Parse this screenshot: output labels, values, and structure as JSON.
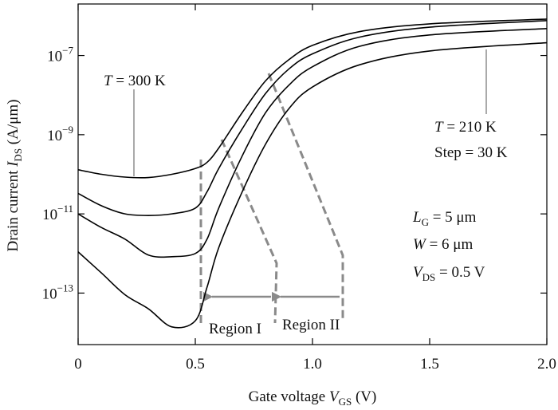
{
  "chart_data": {
    "type": "line",
    "y_label": {
      "text": "Drain current ",
      "var": "I",
      "sub": "DS",
      "unit": " (A/μm)"
    },
    "x_label": {
      "text": "Gate voltage ",
      "var": "V",
      "sub": "GS",
      "unit": " (V)"
    },
    "yscale": "log",
    "x": [
      0,
      0.1,
      0.2,
      0.3,
      0.4,
      0.5,
      0.55,
      0.6,
      0.7,
      0.8,
      0.9,
      1.0,
      1.2,
      1.5,
      2.0
    ],
    "series": [
      {
        "color": "#000000",
        "values": [
          1.3e-10,
          1e-10,
          8.5e-11,
          8.3e-11,
          1e-10,
          1.4e-10,
          2e-10,
          4.6e-10,
          3.6e-09,
          2.3e-08,
          7.9e-08,
          1.8e-07,
          4e-07,
          6.3e-07,
          8.3e-07
        ]
      },
      {
        "color": "#000000",
        "values": [
          3.3e-11,
          1.6e-11,
          1e-11,
          9.1e-12,
          1e-11,
          1.4e-11,
          3.6e-11,
          1.4e-10,
          1.4e-09,
          1.1e-08,
          4.6e-08,
          1.1e-07,
          2.9e-07,
          5.2e-07,
          7.6e-07
        ]
      },
      {
        "color": "#000000",
        "values": [
          1e-11,
          4.5e-12,
          2.3e-12,
          9.1e-13,
          8.3e-13,
          1e-12,
          2.3e-12,
          1.4e-11,
          2.9e-10,
          3.6e-09,
          1.8e-08,
          5.2e-08,
          1.7e-07,
          3.3e-07,
          4.8e-07
        ]
      },
      {
        "color": "#000000",
        "values": [
          1.1e-12,
          3.2e-13,
          9.1e-14,
          4e-14,
          1.4e-14,
          2e-14,
          1.4e-13,
          1.4e-12,
          3.6e-11,
          5.8e-10,
          4.6e-09,
          1.6e-08,
          5.8e-08,
          1.3e-07,
          2.1e-07
        ]
      }
    ],
    "xlim": [
      0,
      2.0
    ],
    "xticks": [
      0,
      0.5,
      {
        "value": 1.0,
        "label": "1.0"
      },
      1.5,
      {
        "value": 2.0,
        "label": "2.0"
      }
    ],
    "ylim": [
      5e-15,
      2e-06
    ],
    "yticks": [
      {
        "value": 1e-13,
        "label": "10",
        "exponent": "−13"
      },
      {
        "value": 1e-11,
        "label": "10",
        "exponent": "−11"
      },
      {
        "value": 1e-09,
        "label": "10",
        "exponent": "−9"
      },
      {
        "value": 1e-07,
        "label": "10",
        "exponent": "−7"
      }
    ],
    "annotations": {
      "t_high": {
        "var": "T",
        "text": " = 300 K"
      },
      "t_low": {
        "var": "T",
        "text": " = 210 K"
      },
      "step": "Step = 30 K",
      "lg": {
        "var": "L",
        "sub": "G",
        "text": " = 5 μm"
      },
      "w": {
        "var": "W",
        "text": " = 6 μm"
      },
      "vds": {
        "var": "V",
        "sub": "DS",
        "text": " = 0.5 V"
      },
      "region1": "Region I",
      "region2": "Region II"
    }
  }
}
